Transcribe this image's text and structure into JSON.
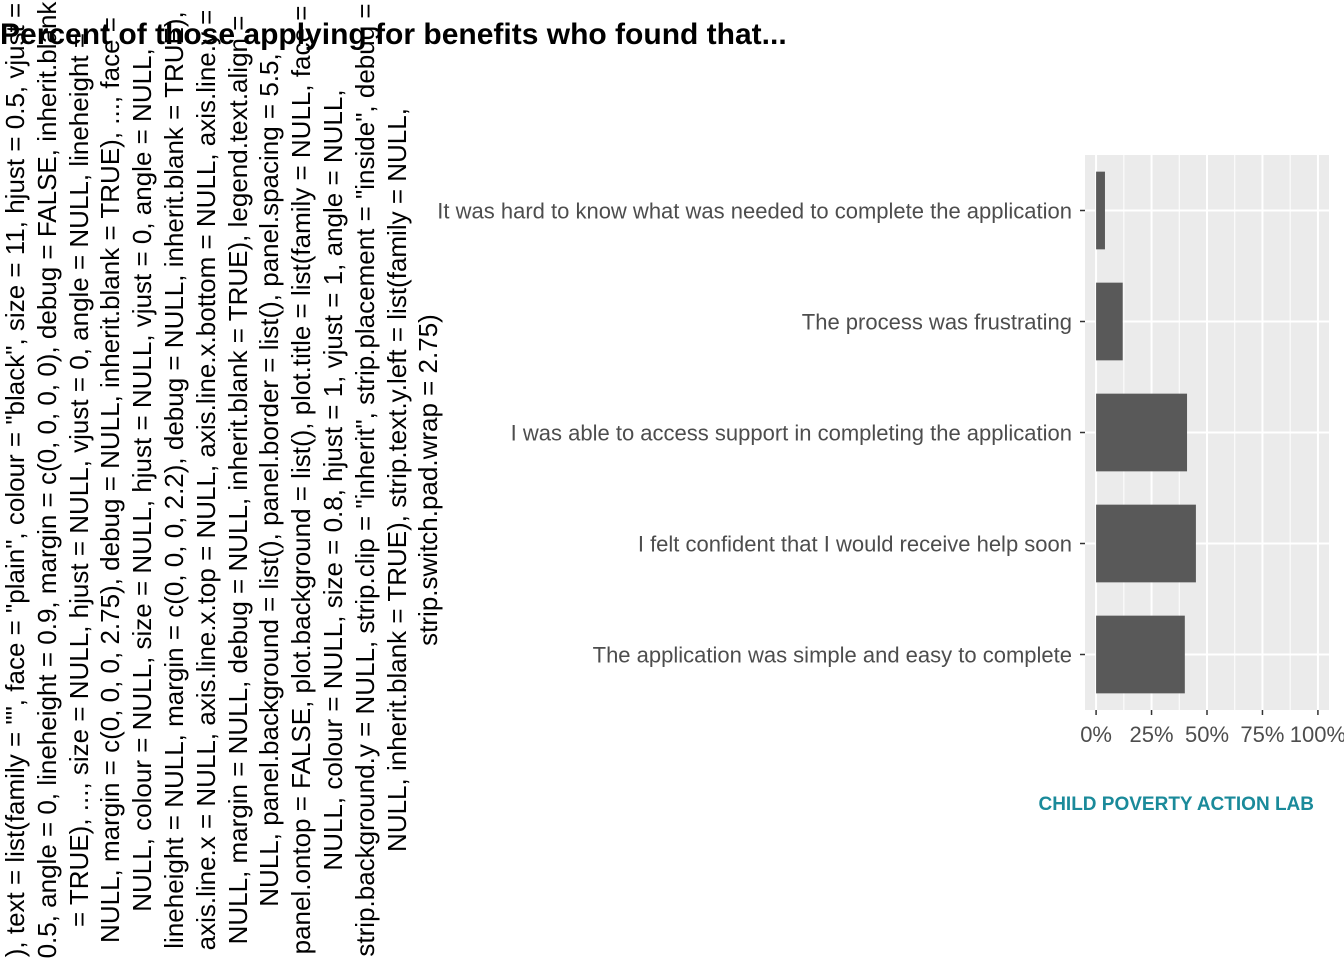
{
  "chart_data": {
    "type": "bar",
    "orientation": "horizontal",
    "title": "Percent of those applying for benefits who found that...",
    "ylabel": "), text = list(family = \"\", face = \"plain\", colour = \"black\", size = 11, hjust = 0.5, vjust = 0.5, angle = 0, lineheight = 0.9, margin = c(0, 0, 0, 0), debug = FALSE, inherit.blank = TRUE), ..., size = NULL, hjust = NULL, vjust = 0, angle = NULL, lineheight = NULL, margin = c(0, 0, 0, 2.75), debug = NULL, inherit.blank = TRUE), ..., face = NULL, colour = NULL, size = NULL, hjust = NULL, vjust = 0, angle = NULL, lineheight = NULL, margin = c(0, 0, 0, 2.2), debug = NULL, inherit.blank = TRUE), axis.line.x = NULL, axis.line.x.top = NULL, axis.line.x.bottom = NULL, axis.line.y = NULL, margin = NULL, debug = NULL, inherit.blank = TRUE), legend.text.align = NULL, panel.background = list(), panel.border = list(), panel.spacing = 5.5, panel.ontop = FALSE, plot.background = list(), plot.title = list(family = NULL, face = NULL, colour = NULL, size = 0.8, hjust = 1, vjust = 1, angle = NULL, strip.background.y = NULL, strip.clip = \"inherit\", strip.placement = \"inside\", debug = NULL, inherit.blank = TRUE), strip.text.y.left = list(family = NULL, strip.switch.pad.wrap = 2.75)",
    "xlabel": "",
    "caption": "CHILD POVERTY ACTION LAB",
    "categories": [
      "It was hard to know what was needed to complete the application",
      "The process was frustrating",
      "I was able to access support in completing the application",
      "I felt confident that I would receive help soon",
      "The application was simple and easy to complete"
    ],
    "values": [
      4,
      12,
      41,
      45,
      40
    ],
    "xlim": [
      -5,
      105
    ],
    "ticks": [
      0,
      25,
      50,
      75,
      100
    ],
    "tick_labels": [
      "0%",
      "25%",
      "50%",
      "75%",
      "100%"
    ],
    "grid": true,
    "legend": "none",
    "colors": {
      "bar": "#595959",
      "panel": "#ebebeb",
      "grid": "#ffffff",
      "caption": "#1a8a9a",
      "axis_text": "#4d4d4d"
    }
  }
}
